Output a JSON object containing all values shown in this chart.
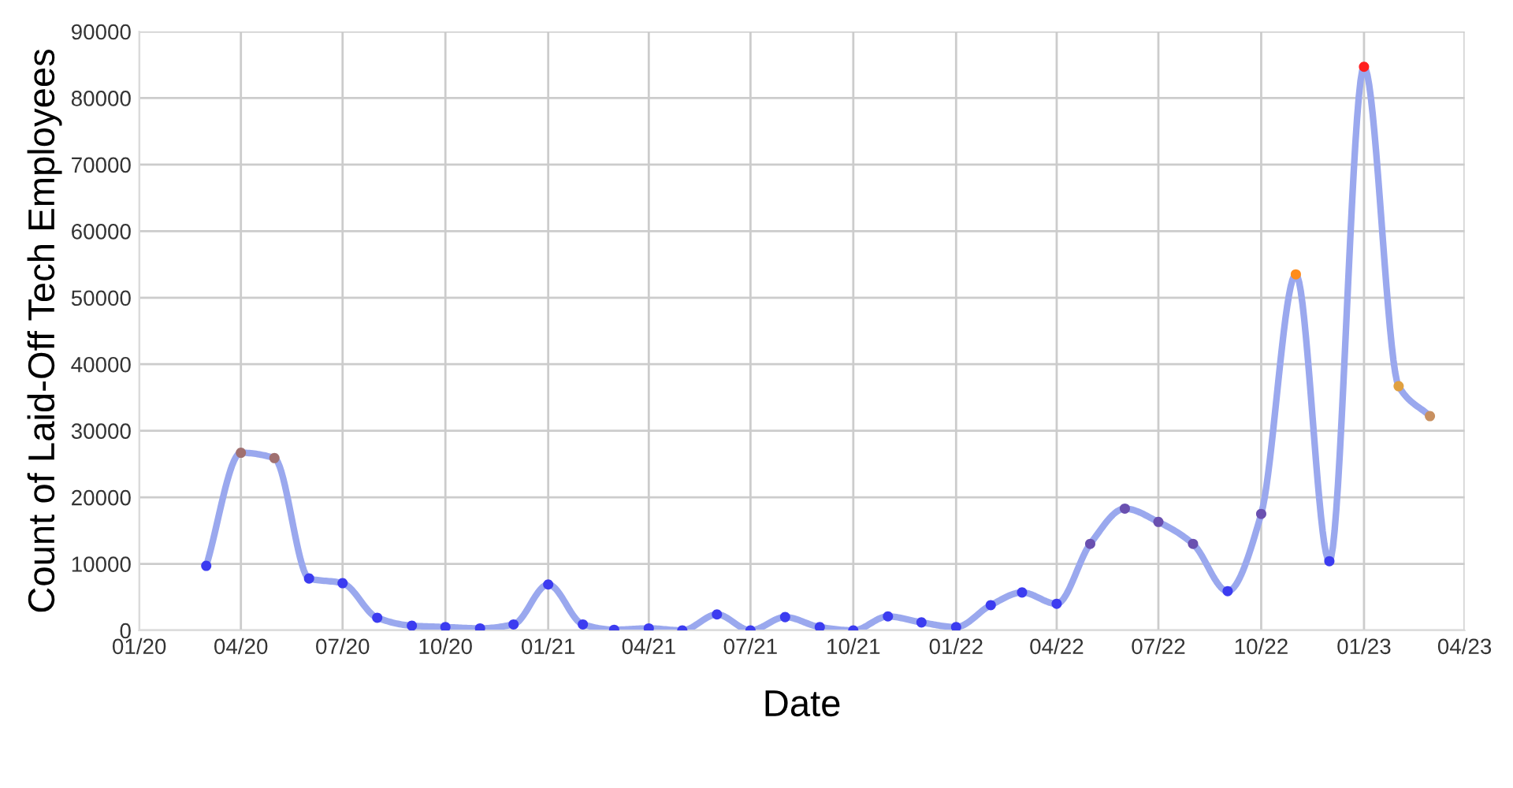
{
  "chart_data": {
    "type": "line",
    "xlabel": "Date",
    "ylabel": "Count of Laid-Off Tech Employees",
    "x": [
      "2020-03",
      "2020-04",
      "2020-05",
      "2020-06",
      "2020-07",
      "2020-08",
      "2020-09",
      "2020-10",
      "2020-11",
      "2020-12",
      "2021-01",
      "2021-02",
      "2021-03",
      "2021-04",
      "2021-05",
      "2021-06",
      "2021-07",
      "2021-08",
      "2021-09",
      "2021-10",
      "2021-11",
      "2021-12",
      "2022-01",
      "2022-02",
      "2022-03",
      "2022-04",
      "2022-05",
      "2022-06",
      "2022-07",
      "2022-08",
      "2022-09",
      "2022-10",
      "2022-11",
      "2022-12",
      "2023-01",
      "2023-02",
      "2023-03"
    ],
    "series": [
      {
        "color": "#9aa8ee",
        "values": [
          9700,
          26700,
          25900,
          7800,
          7100,
          1900,
          700,
          500,
          300,
          900,
          6900,
          900,
          100,
          300,
          0,
          2400,
          0,
          2000,
          500,
          0,
          2100,
          1200,
          500,
          3800,
          5700,
          4000,
          13000,
          18300,
          16300,
          13000,
          5900,
          17500,
          53500,
          10400,
          84700,
          36700,
          32200
        ],
        "colors": [
          "#3c3cf0",
          "#a07070",
          "#a07070",
          "#3c3cf0",
          "#3c3cf0",
          "#3c3cf0",
          "#3c3cf0",
          "#3c3cf0",
          "#3c3cf0",
          "#3c3cf0",
          "#3c3cf0",
          "#3c3cf0",
          "#3c3cf0",
          "#3c3cf0",
          "#3c3cf0",
          "#3c3cf0",
          "#3c3cf0",
          "#3c3cf0",
          "#3c3cf0",
          "#3c3cf0",
          "#3c3cf0",
          "#3c3cf0",
          "#3c3cf0",
          "#3c3cf0",
          "#3c3cf0",
          "#3c3cf0",
          "#6a50b0",
          "#6a50b0",
          "#6a50b0",
          "#6a50b0",
          "#3c3cf0",
          "#6a50b0",
          "#ff8c1a",
          "#3c3cf0",
          "#ff2020",
          "#e0a040",
          "#c89060"
        ]
      }
    ],
    "xlim": [
      "2020-01",
      "2023-04"
    ],
    "xticks": [
      {
        "value": "2020-01",
        "label": "01/20"
      },
      {
        "value": "2020-04",
        "label": "04/20"
      },
      {
        "value": "2020-07",
        "label": "07/20"
      },
      {
        "value": "2020-10",
        "label": "10/20"
      },
      {
        "value": "2021-01",
        "label": "01/21"
      },
      {
        "value": "2021-04",
        "label": "04/21"
      },
      {
        "value": "2021-07",
        "label": "07/21"
      },
      {
        "value": "2021-10",
        "label": "10/21"
      },
      {
        "value": "2022-01",
        "label": "01/22"
      },
      {
        "value": "2022-04",
        "label": "04/22"
      },
      {
        "value": "2022-07",
        "label": "07/22"
      },
      {
        "value": "2022-10",
        "label": "10/22"
      },
      {
        "value": "2023-01",
        "label": "01/23"
      },
      {
        "value": "2023-04",
        "label": "04/23"
      }
    ],
    "ylim": [
      0,
      90000
    ],
    "yticks": [
      0,
      10000,
      20000,
      30000,
      40000,
      50000,
      60000,
      70000,
      80000,
      90000
    ],
    "grid": true,
    "marker": "circle",
    "line_style": "solid"
  }
}
